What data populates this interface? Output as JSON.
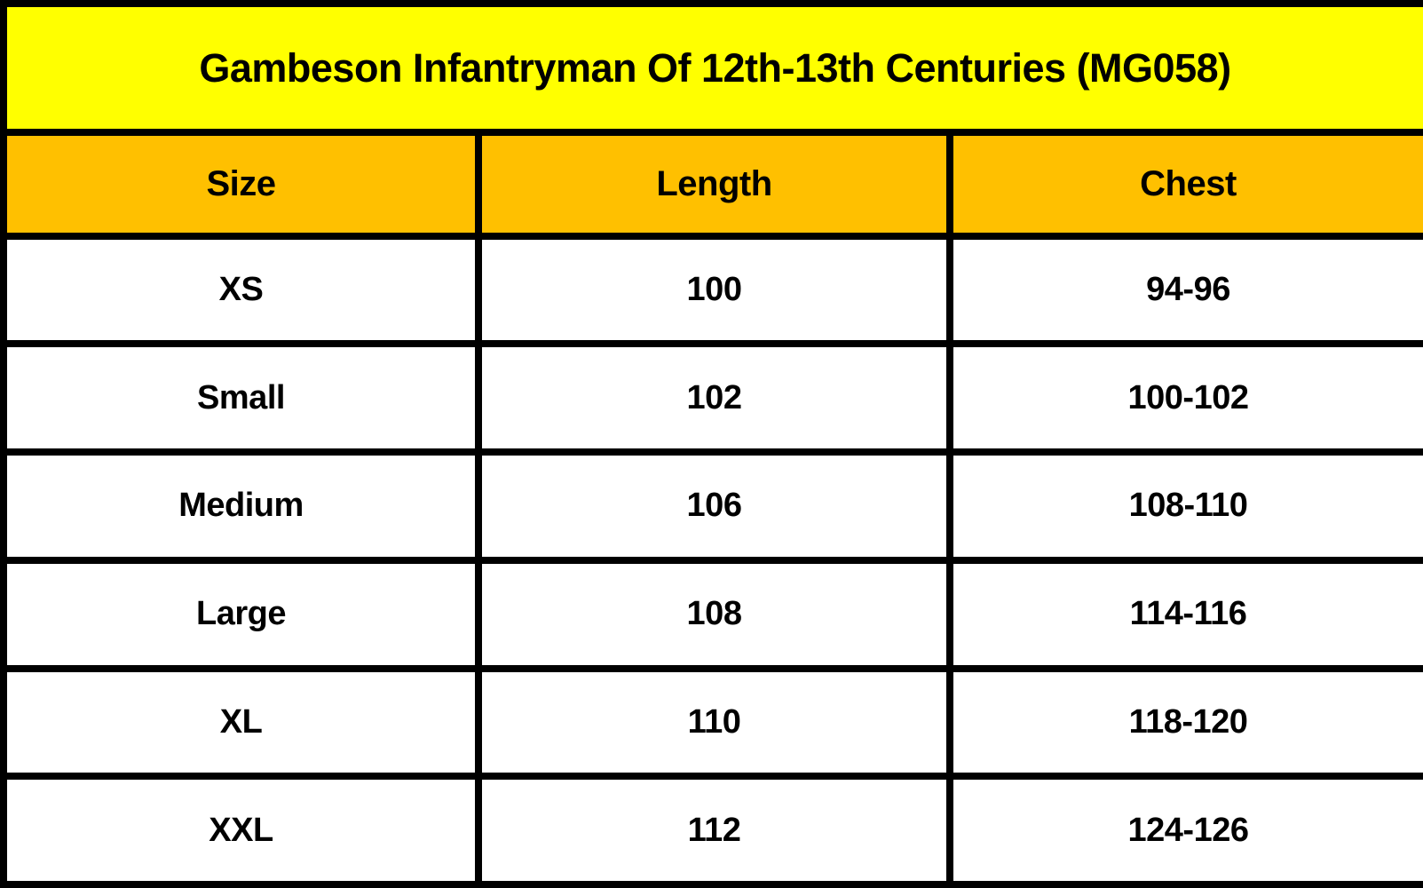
{
  "title": "Gambeson Infantryman Of 12th-13th Centuries (MG058)",
  "columns": [
    "Size",
    "Length",
    "Chest"
  ],
  "rows": [
    [
      "XS",
      "100",
      "94-96"
    ],
    [
      "Small",
      "102",
      "100-102"
    ],
    [
      "Medium",
      "106",
      "108-110"
    ],
    [
      "Large",
      "108",
      "114-116"
    ],
    [
      "XL",
      "110",
      "118-120"
    ],
    [
      "XXL",
      "112",
      "124-126"
    ]
  ],
  "colors": {
    "title_background": "#ffff00",
    "header_background": "#ffc000",
    "row_background": "#ffffff",
    "border": "#000000",
    "text": "#000000"
  },
  "chart_data": {
    "type": "table",
    "title": "Gambeson Infantryman Of 12th-13th Centuries (MG058)",
    "columns": [
      "Size",
      "Length",
      "Chest"
    ],
    "rows": [
      {
        "size": "XS",
        "length": 100,
        "chest": "94-96"
      },
      {
        "size": "Small",
        "length": 102,
        "chest": "100-102"
      },
      {
        "size": "Medium",
        "length": 106,
        "chest": "108-110"
      },
      {
        "size": "Large",
        "length": 108,
        "chest": "114-116"
      },
      {
        "size": "XL",
        "length": 110,
        "chest": "118-120"
      },
      {
        "size": "XXL",
        "length": 112,
        "chest": "124-126"
      }
    ],
    "notes": "Size chart table; measurements in cm implied; grid on; bold black text on yellow title band, amber header band, white data rows"
  }
}
